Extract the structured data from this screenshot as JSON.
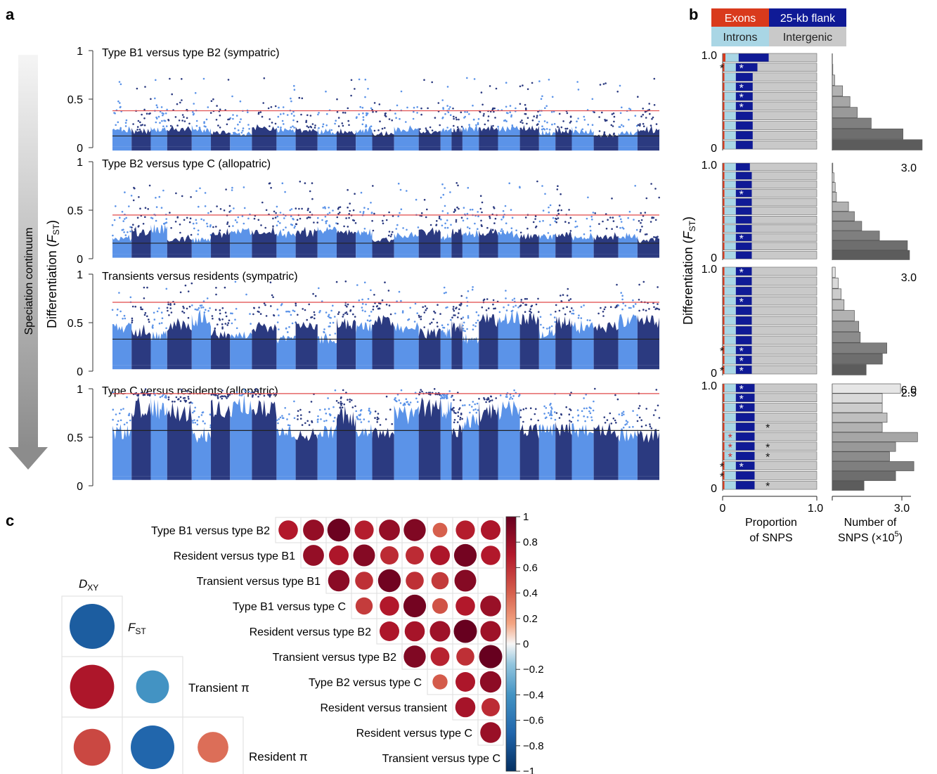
{
  "panel_labels": {
    "a": "a",
    "b": "b",
    "c": "c"
  },
  "continuum_label": "Speciation continuum",
  "y_axis_label_a": "Differentiation (",
  "y_axis_label_b": "Differentiation (",
  "fst_symbol": "F",
  "fst_sub": "ST",
  "fst_close": ")",
  "colors": {
    "light": "#5b93e8",
    "dark": "#2b3a80",
    "threshold_red": "#e04848",
    "mean_black": "#222222",
    "exons": "#d93a1c",
    "flank": "#0f1a96",
    "introns": "#a9d6e5",
    "intergenic": "#c9c9c9",
    "arrow_top": "#f4f4f4",
    "arrow_bottom": "#8a8a8a"
  },
  "manhattan": [
    {
      "title": "Type B1 versus type B2 (sympatric)",
      "ticks": [
        "1",
        "0.5",
        "0"
      ],
      "red_line": 0.38,
      "black_line": 0.12,
      "base": 0.01,
      "spread": 0.22,
      "peak": 0.72
    },
    {
      "title": "Type B2 versus type C (allopatric)",
      "ticks": [
        "1",
        "0.5",
        "0"
      ],
      "red_line": 0.45,
      "black_line": 0.16,
      "base": 0.05,
      "spread": 0.3,
      "peak": 0.8
    },
    {
      "title": "Transients versus residents (sympatric)",
      "ticks": [
        "1",
        "0.5",
        "0"
      ],
      "red_line": 0.71,
      "black_line": 0.33,
      "base": 0.06,
      "spread": 0.55,
      "peak": 0.93
    },
    {
      "title": "Type C versus residents (allopatric)",
      "ticks": [
        "1",
        "0.5",
        "0"
      ],
      "red_line": 0.95,
      "black_line": 0.57,
      "base": 0.1,
      "spread": 0.86,
      "peak": 1.0
    }
  ],
  "legend_b": {
    "exons": "Exons",
    "flank": "25-kb flank",
    "introns": "Introns",
    "intergenic": "Intergenic"
  },
  "prop_xaxis": {
    "ticks": [
      "0",
      "1.0"
    ],
    "label_line1": "Proportion",
    "label_line2": "of SNPS"
  },
  "count_xaxis": {
    "tick": "3.0",
    "label_line1": "Number of",
    "label_line2": "SNPS (×10",
    "label_sup": "5",
    "label_close": ")"
  },
  "chart_data": [
    {
      "type": "stacked_bar",
      "panel": "b",
      "categories": [
        "Exons",
        "Introns",
        "25-kb flank",
        "Intergenic"
      ],
      "groups": [
        {
          "ticks": [
            "1.0",
            "0"
          ],
          "bars": [
            {
              "exons": 0.03,
              "introns": 0.14,
              "flank": 0.32,
              "stars": []
            },
            {
              "exons": 0.02,
              "introns": 0.12,
              "flank": 0.23,
              "stars": [
                {
                  "pos": 0.0,
                  "color": "black"
                },
                {
                  "pos": 0.2,
                  "color": "white"
                }
              ]
            },
            {
              "exons": 0.02,
              "introns": 0.12,
              "flank": 0.18,
              "stars": []
            },
            {
              "exons": 0.02,
              "introns": 0.12,
              "flank": 0.18,
              "stars": [
                {
                  "pos": 0.2,
                  "color": "white"
                }
              ]
            },
            {
              "exons": 0.02,
              "introns": 0.12,
              "flank": 0.18,
              "stars": [
                {
                  "pos": 0.2,
                  "color": "white"
                }
              ]
            },
            {
              "exons": 0.02,
              "introns": 0.12,
              "flank": 0.18,
              "stars": [
                {
                  "pos": 0.2,
                  "color": "white"
                }
              ]
            },
            {
              "exons": 0.02,
              "introns": 0.12,
              "flank": 0.18,
              "stars": []
            },
            {
              "exons": 0.02,
              "introns": 0.12,
              "flank": 0.18,
              "stars": []
            },
            {
              "exons": 0.02,
              "introns": 0.12,
              "flank": 0.18,
              "stars": []
            },
            {
              "exons": 0.02,
              "introns": 0.12,
              "flank": 0.18,
              "stars": []
            }
          ],
          "counts": [
            0.0,
            0.02,
            0.08,
            0.35,
            0.6,
            0.85,
            1.32,
            2.4,
            3.05
          ],
          "count_max_label": "3.0"
        },
        {
          "ticks": [
            "1.0",
            "0"
          ],
          "bars": [
            {
              "exons": 0.02,
              "introns": 0.12,
              "flank": 0.15,
              "stars": []
            },
            {
              "exons": 0.02,
              "introns": 0.12,
              "flank": 0.17,
              "stars": []
            },
            {
              "exons": 0.02,
              "introns": 0.12,
              "flank": 0.17,
              "stars": []
            },
            {
              "exons": 0.02,
              "introns": 0.12,
              "flank": 0.17,
              "stars": [
                {
                  "pos": 0.2,
                  "color": "white"
                }
              ]
            },
            {
              "exons": 0.02,
              "introns": 0.12,
              "flank": 0.17,
              "stars": []
            },
            {
              "exons": 0.02,
              "introns": 0.12,
              "flank": 0.17,
              "stars": []
            },
            {
              "exons": 0.02,
              "introns": 0.12,
              "flank": 0.17,
              "stars": []
            },
            {
              "exons": 0.02,
              "introns": 0.12,
              "flank": 0.17,
              "stars": []
            },
            {
              "exons": 0.02,
              "introns": 0.12,
              "flank": 0.17,
              "stars": [
                {
                  "pos": 0.2,
                  "color": "white"
                }
              ]
            },
            {
              "exons": 0.02,
              "introns": 0.12,
              "flank": 0.17,
              "stars": []
            },
            {
              "exons": 0.02,
              "introns": 0.12,
              "flank": 0.17,
              "stars": []
            }
          ],
          "counts": [
            0.02,
            0.06,
            0.1,
            0.14,
            0.55,
            0.75,
            1.0,
            1.6,
            2.55,
            2.62
          ],
          "count_max_label": "3.0"
        },
        {
          "ticks": [
            "1.0",
            "0"
          ],
          "bars": [
            {
              "exons": 0.02,
              "introns": 0.12,
              "flank": 0.17,
              "stars": [
                {
                  "pos": 0.2,
                  "color": "white"
                }
              ]
            },
            {
              "exons": 0.02,
              "introns": 0.12,
              "flank": 0.17,
              "stars": []
            },
            {
              "exons": 0.02,
              "introns": 0.12,
              "flank": 0.17,
              "stars": []
            },
            {
              "exons": 0.02,
              "introns": 0.12,
              "flank": 0.17,
              "stars": [
                {
                  "pos": 0.2,
                  "color": "white"
                }
              ]
            },
            {
              "exons": 0.02,
              "introns": 0.12,
              "flank": 0.17,
              "stars": []
            },
            {
              "exons": 0.02,
              "introns": 0.12,
              "flank": 0.17,
              "stars": []
            },
            {
              "exons": 0.02,
              "introns": 0.12,
              "flank": 0.17,
              "stars": []
            },
            {
              "exons": 0.02,
              "introns": 0.12,
              "flank": 0.17,
              "stars": []
            },
            {
              "exons": 0.02,
              "introns": 0.12,
              "flank": 0.17,
              "stars": [
                {
                  "pos": 0.0,
                  "color": "black"
                },
                {
                  "pos": 0.2,
                  "color": "white"
                }
              ]
            },
            {
              "exons": 0.02,
              "introns": 0.12,
              "flank": 0.17,
              "stars": [
                {
                  "pos": 0.2,
                  "color": "white"
                }
              ]
            },
            {
              "exons": 0.02,
              "introns": 0.12,
              "flank": 0.17,
              "stars": [
                {
                  "pos": 0.0,
                  "color": "black"
                },
                {
                  "pos": 0.2,
                  "color": "white"
                }
              ]
            }
          ],
          "counts": [
            0.1,
            0.2,
            0.3,
            0.4,
            0.75,
            0.9,
            0.95,
            1.85,
            1.7,
            1.15
          ],
          "count_max_label": "2.5"
        },
        {
          "ticks": [
            "1.0",
            "0"
          ],
          "bars": [
            {
              "exons": 0.02,
              "introns": 0.12,
              "flank": 0.2,
              "stars": [
                {
                  "pos": 0.2,
                  "color": "white"
                }
              ]
            },
            {
              "exons": 0.02,
              "introns": 0.12,
              "flank": 0.2,
              "stars": [
                {
                  "pos": 0.2,
                  "color": "white"
                }
              ]
            },
            {
              "exons": 0.02,
              "introns": 0.12,
              "flank": 0.2,
              "stars": [
                {
                  "pos": 0.2,
                  "color": "white"
                }
              ]
            },
            {
              "exons": 0.02,
              "introns": 0.12,
              "flank": 0.2,
              "stars": []
            },
            {
              "exons": 0.02,
              "introns": 0.12,
              "flank": 0.2,
              "stars": [
                {
                  "pos": 0.48,
                  "color": "black"
                }
              ]
            },
            {
              "exons": 0.02,
              "introns": 0.12,
              "flank": 0.2,
              "stars": [
                {
                  "pos": 0.08,
                  "color": "red"
                }
              ]
            },
            {
              "exons": 0.02,
              "introns": 0.12,
              "flank": 0.2,
              "stars": [
                {
                  "pos": 0.08,
                  "color": "red"
                },
                {
                  "pos": 0.48,
                  "color": "black"
                }
              ]
            },
            {
              "exons": 0.02,
              "introns": 0.12,
              "flank": 0.2,
              "stars": [
                {
                  "pos": 0.08,
                  "color": "red"
                },
                {
                  "pos": 0.48,
                  "color": "black"
                }
              ]
            },
            {
              "exons": 0.02,
              "introns": 0.12,
              "flank": 0.2,
              "stars": [
                {
                  "pos": 0.0,
                  "color": "black"
                },
                {
                  "pos": 0.2,
                  "color": "white"
                }
              ]
            },
            {
              "exons": 0.02,
              "introns": 0.12,
              "flank": 0.2,
              "stars": [
                {
                  "pos": 0.0,
                  "color": "black"
                }
              ]
            },
            {
              "exons": 0.02,
              "introns": 0.12,
              "flank": 0.2,
              "stars": [
                {
                  "pos": 0.48,
                  "color": "black"
                }
              ]
            }
          ],
          "counts": [
            5.6,
            4.1,
            4.1,
            4.5,
            4.1,
            7.0,
            5.2,
            4.7,
            6.7,
            5.2,
            2.6
          ],
          "count_max_label": "6.0"
        }
      ]
    },
    {
      "type": "correlogram",
      "panel": "c",
      "labels": [
        "Type B1 versus type B2",
        "Resident versus type B1",
        "Transient versus type B1",
        "Type B1 versus type C",
        "Resident versus type B2",
        "Transient versus type B2",
        "Type B2 versus type C",
        "Resident versus transient",
        "Resident versus type C",
        "Transient versus type C"
      ],
      "matrix": [
        [
          0.7,
          0.82,
          0.98,
          0.68,
          0.82,
          0.9,
          0.4,
          0.68,
          0.72
        ],
        [
          0.82,
          0.72,
          0.88,
          0.62,
          0.62,
          0.72,
          0.95,
          0.7
        ],
        [
          0.86,
          0.6,
          0.96,
          0.6,
          0.56,
          0.88
        ],
        [
          0.55,
          0.7,
          0.95,
          0.45,
          0.7,
          0.8
        ],
        [
          0.72,
          0.75,
          0.78,
          1.0,
          0.78
        ],
        [
          0.9,
          0.66,
          0.6,
          1.0
        ],
        [
          0.42,
          0.72,
          0.85
        ],
        [
          0.75,
          0.62
        ],
        [
          0.8
        ]
      ],
      "colorbar_ticks": [
        "1",
        "0.8",
        "0.6",
        "0.4",
        "0.2",
        "0",
        "−0.2",
        "−0.4",
        "−0.6",
        "−0.8",
        "−1"
      ],
      "range": [
        -1,
        1
      ]
    },
    {
      "type": "correlogram",
      "panel": "c-inset",
      "row_labels": [
        "D",
        "F",
        "Transient π",
        "Resident π"
      ],
      "label_subs": [
        "XY",
        "ST",
        "",
        ""
      ],
      "pairs": [
        {
          "row": 0,
          "col": 0,
          "value": -0.75
        },
        {
          "row": 1,
          "col": 0,
          "value": 0.72
        },
        {
          "row": 1,
          "col": 1,
          "value": -0.4
        },
        {
          "row": 2,
          "col": 0,
          "value": 0.5
        },
        {
          "row": 2,
          "col": 1,
          "value": -0.7
        },
        {
          "row": 2,
          "col": 2,
          "value": 0.35
        }
      ]
    }
  ]
}
